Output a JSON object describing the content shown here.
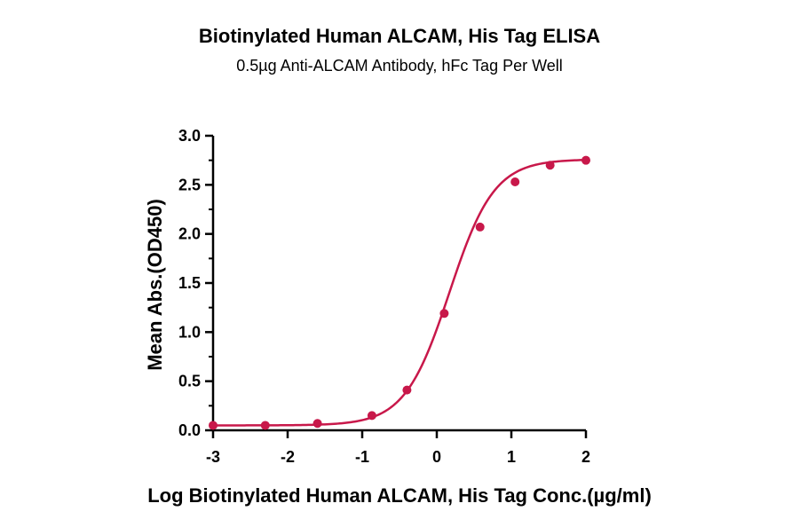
{
  "chart_data": {
    "type": "line",
    "title": "Biotinylated Human ALCAM, His Tag ELISA",
    "subtitle": "0.5µg Anti-ALCAM Antibody, hFc Tag Per Well",
    "xlabel": "Log Biotinylated Human ALCAM, His Tag Conc.(µg/ml)",
    "ylabel": "Mean Abs.(OD450)",
    "xlim": [
      -3,
      2
    ],
    "ylim": [
      0,
      3
    ],
    "x_ticks": [
      "-3",
      "-2",
      "-1",
      "0",
      "1",
      "2"
    ],
    "y_ticks": [
      "0.0",
      "0.5",
      "1.0",
      "1.5",
      "2.0",
      "2.5",
      "3.0"
    ],
    "grid": false,
    "series": [
      {
        "x": [
          -3.0,
          -2.3,
          -1.6,
          -0.87,
          -0.4,
          0.1,
          0.58,
          1.05,
          1.52,
          2.0
        ],
        "y": [
          0.05,
          0.05,
          0.07,
          0.15,
          0.41,
          1.19,
          2.07,
          2.53,
          2.7,
          2.75
        ],
        "color": "#c8184a"
      }
    ],
    "fit": {
      "bottom": 0.05,
      "top": 2.76,
      "logEC50": 0.17,
      "hill": 1.45
    }
  }
}
